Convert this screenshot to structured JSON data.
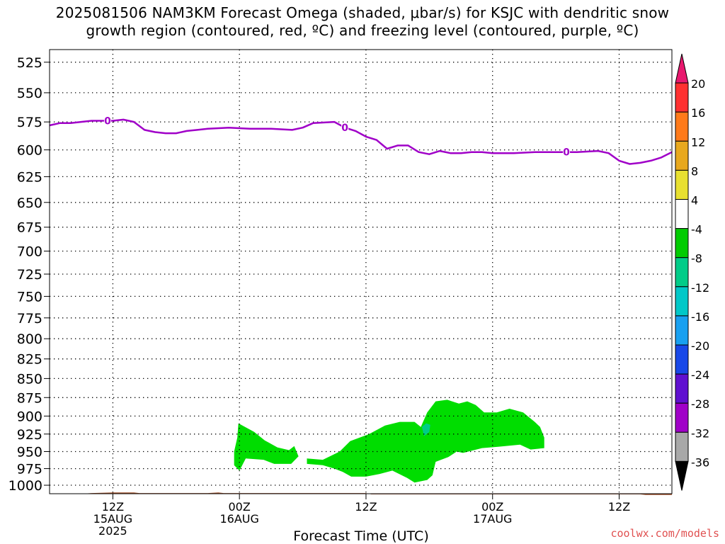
{
  "title": {
    "line1": "2025081506 NAM3KM Forecast Omega (shaded, μbar/s) for KSJC with dendritic snow",
    "line2": "growth region (contoured, red, ºC) and freezing level (contoured, purple, ºC)"
  },
  "watermark": "coolwx.com/models",
  "chart_data": {
    "type": "contour",
    "xlabel": "Forecast Time (UTC)",
    "x_ticks": [
      {
        "hours": 6,
        "lines": [
          "12Z",
          "15AUG",
          "2025"
        ]
      },
      {
        "hours": 18,
        "lines": [
          "00Z",
          "16AUG"
        ]
      },
      {
        "hours": 30,
        "lines": [
          "12Z"
        ]
      },
      {
        "hours": 42,
        "lines": [
          "00Z",
          "17AUG"
        ]
      },
      {
        "hours": 54,
        "lines": [
          "12Z"
        ]
      }
    ],
    "xlim_hours": [
      0,
      59
    ],
    "ylabel": "",
    "ylim_mb": [
      515,
      1013
    ],
    "y_scale": "log-pressure",
    "y_ticks": [
      525,
      550,
      575,
      600,
      625,
      650,
      675,
      700,
      725,
      750,
      775,
      800,
      825,
      850,
      875,
      900,
      925,
      950,
      975,
      1000
    ],
    "grid": "dotted",
    "freezing_level": {
      "label": "0",
      "color": "#a000c8",
      "hours": [
        0,
        1,
        2,
        4,
        5,
        6,
        7,
        8,
        9,
        10,
        11,
        12,
        13,
        14,
        15,
        17,
        19,
        21,
        23,
        24,
        25,
        27,
        28,
        29,
        30,
        31,
        32,
        33,
        34,
        35,
        36,
        37,
        38,
        39,
        40,
        41,
        42,
        43,
        44,
        46,
        48,
        50,
        52,
        53,
        54,
        55,
        56,
        57,
        58,
        59
      ],
      "mb": [
        578,
        576,
        576,
        574,
        574,
        574,
        573,
        575,
        582,
        584,
        585,
        585,
        583,
        582,
        581,
        580,
        581,
        581,
        582,
        580,
        576,
        575,
        580,
        583,
        588,
        591,
        599,
        596,
        596,
        602,
        604,
        601,
        603,
        603,
        602,
        602,
        603,
        603,
        603,
        602,
        602,
        602,
        601,
        603,
        610,
        613,
        612,
        610,
        607,
        602
      ]
    },
    "omega_shading": {
      "units": "μbar/s",
      "regions": [
        {
          "level": "-4 to -8",
          "color": "#00dd00",
          "points": [
            [
              17.9,
              910
            ],
            [
              19.4,
              922
            ],
            [
              20.4,
              934
            ],
            [
              21.6,
              944
            ],
            [
              22.7,
              948
            ],
            [
              23.2,
              942
            ],
            [
              23.6,
              957
            ],
            [
              22.9,
              968
            ],
            [
              21.3,
              968
            ],
            [
              20.3,
              962
            ],
            [
              18.6,
              960
            ],
            [
              18.0,
              978
            ],
            [
              17.5,
              970
            ],
            [
              17.5,
              950
            ],
            [
              17.8,
              930
            ]
          ]
        },
        {
          "level": "-4 to -8",
          "color": "#00dd00",
          "points": [
            [
              24.4,
              960
            ],
            [
              25.9,
              962
            ],
            [
              27.5,
              950
            ],
            [
              28.5,
              935
            ],
            [
              30.3,
              925
            ],
            [
              31.8,
              913
            ],
            [
              33.2,
              908
            ],
            [
              34.6,
              908
            ],
            [
              35.2,
              915
            ],
            [
              35.8,
              895
            ],
            [
              36.6,
              880
            ],
            [
              37.7,
              878
            ],
            [
              38.8,
              883
            ],
            [
              39.6,
              880
            ],
            [
              40.4,
              885
            ],
            [
              41.2,
              895
            ],
            [
              42.4,
              895
            ],
            [
              43.6,
              890
            ],
            [
              44.9,
              895
            ],
            [
              46.0,
              908
            ],
            [
              46.5,
              915
            ],
            [
              46.9,
              930
            ],
            [
              46.9,
              945
            ],
            [
              45.6,
              947
            ],
            [
              44.6,
              940
            ],
            [
              42.6,
              943
            ],
            [
              41.0,
              945
            ],
            [
              39.2,
              952
            ],
            [
              38.6,
              950
            ],
            [
              37.8,
              958
            ],
            [
              36.6,
              965
            ],
            [
              36.3,
              985
            ],
            [
              35.8,
              992
            ],
            [
              34.6,
              996
            ],
            [
              33.9,
              989
            ],
            [
              32.5,
              978
            ],
            [
              31.3,
              983
            ],
            [
              30.0,
              987
            ],
            [
              28.6,
              987
            ],
            [
              27.8,
              980
            ],
            [
              27.0,
              975
            ],
            [
              25.9,
              970
            ],
            [
              24.4,
              968
            ]
          ]
        },
        {
          "level": "-8 to -12",
          "color": "#00cc88",
          "points": [
            [
              35.3,
              915
            ],
            [
              35.7,
              910
            ],
            [
              36.1,
              912
            ],
            [
              36.0,
              922
            ],
            [
              35.5,
              928
            ]
          ]
        }
      ]
    },
    "terrain": {
      "color": "#a0522d",
      "hours": [
        0,
        3,
        4,
        6,
        8,
        8.5,
        12,
        15,
        16,
        16.5,
        25,
        30,
        30.5,
        56,
        56.5,
        59
      ],
      "mb": [
        1013,
        1013,
        1012,
        1011,
        1011,
        1012,
        1012,
        1012,
        1011,
        1012,
        1012,
        1012,
        1014,
        1014,
        1015,
        1015
      ]
    },
    "colorbar": {
      "labels": [
        "20",
        "16",
        "12",
        "8",
        "4",
        "-4",
        "-8",
        "-12",
        "-16",
        "-20",
        "-24",
        "-28",
        "-32",
        "-36"
      ],
      "colors": [
        "#e8186e",
        "#ff3030",
        "#ff7a1a",
        "#e8a81e",
        "#e8e030",
        "#ffffff",
        "#00cc00",
        "#00cc88",
        "#00c8c8",
        "#18a0f0",
        "#1848e8",
        "#6010d0",
        "#a000c8",
        "#a8a8a8",
        "#000000"
      ]
    }
  }
}
